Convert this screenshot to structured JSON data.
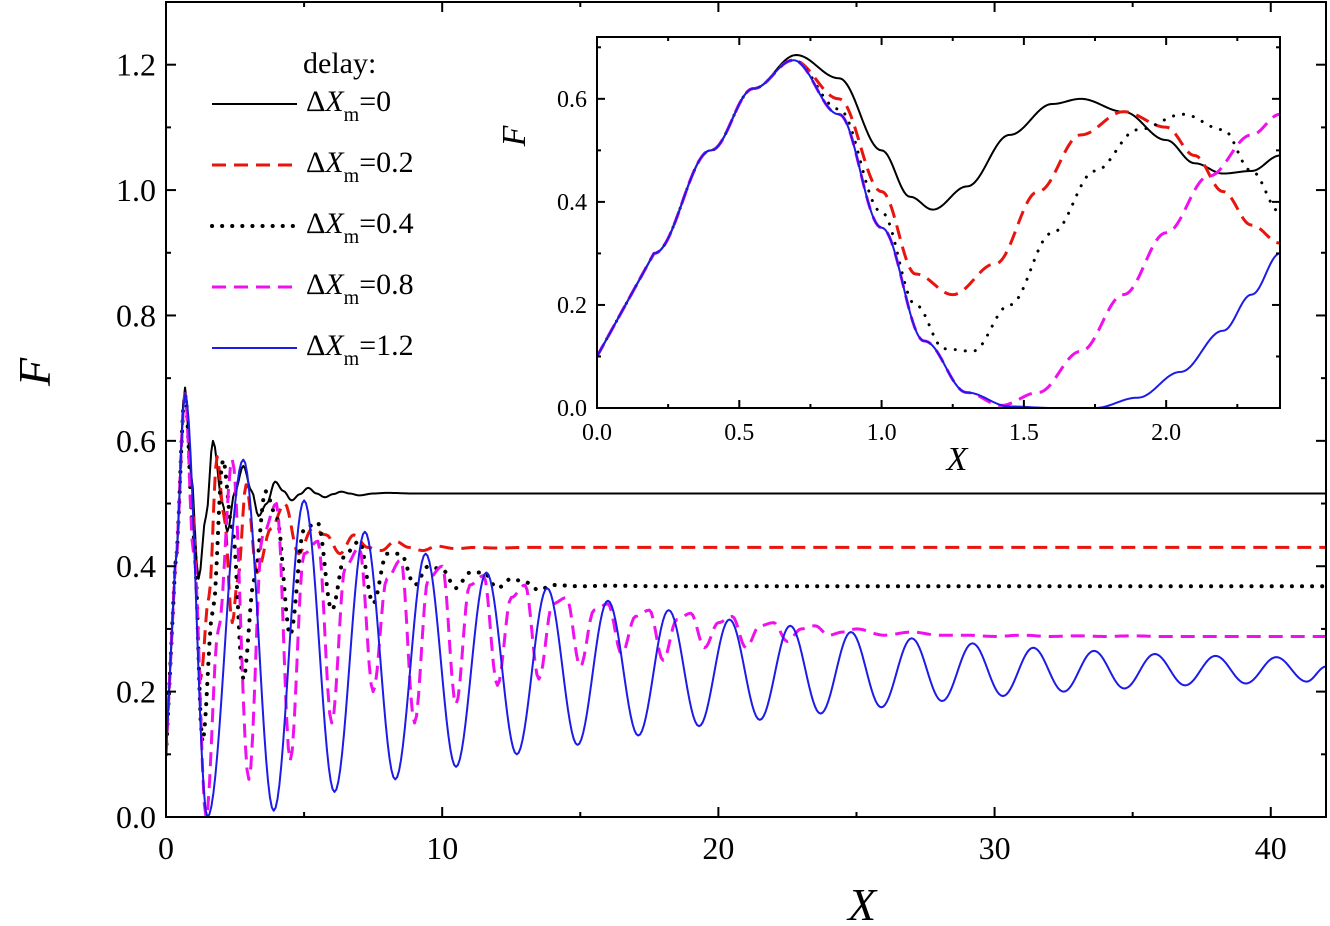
{
  "chart_data": [
    {
      "id": "main",
      "type": "line",
      "xlabel": "X",
      "ylabel": "F",
      "xlim": [
        0,
        42
      ],
      "ylim": [
        0,
        1.3
      ],
      "xticks": [
        "0",
        "10",
        "20",
        "30",
        "40"
      ],
      "yticks": [
        "0.0",
        "0.2",
        "0.4",
        "0.6",
        "0.8",
        "1.0",
        "1.2"
      ],
      "legend": {
        "title": "delay:",
        "placement": "top-left",
        "entries": [
          {
            "prefix": "Δ",
            "var": "X",
            "sub": "m",
            "value": "=0",
            "color": "#000000",
            "dash": "solid"
          },
          {
            "prefix": "Δ",
            "var": "X",
            "sub": "m",
            "value": "=0.2",
            "color": "#e8140e",
            "dash": "dashed"
          },
          {
            "prefix": "Δ",
            "var": "X",
            "sub": "m",
            "value": "=0.4",
            "color": "#000000",
            "dash": "dotted"
          },
          {
            "prefix": "Δ",
            "var": "X",
            "sub": "m",
            "value": "=0.8",
            "color": "#ee11ee",
            "dash": "dashed"
          },
          {
            "prefix": "Δ",
            "var": "X",
            "sub": "m",
            "value": "=1.2",
            "color": "#1c1ce6",
            "dash": "solid"
          }
        ]
      },
      "series": [
        {
          "delay": 0,
          "color": "#000000",
          "dash": "solid",
          "line_width": 2,
          "x": [
            0,
            0.33,
            0.69,
            0.9,
            1.18,
            1.45,
            1.7,
            2.05,
            2.22,
            2.5,
            2.8,
            3.1,
            3.35,
            3.65,
            3.95,
            4.25,
            4.55,
            4.85,
            5.15,
            5.45,
            5.75,
            6.05,
            6.35,
            6.65,
            7.0,
            7.5,
            8.0,
            9.0,
            42
          ],
          "y": [
            0.1,
            0.4,
            0.685,
            0.55,
            0.38,
            0.48,
            0.6,
            0.5,
            0.455,
            0.52,
            0.56,
            0.52,
            0.48,
            0.5,
            0.535,
            0.52,
            0.505,
            0.515,
            0.525,
            0.516,
            0.51,
            0.515,
            0.519,
            0.516,
            0.513,
            0.516,
            0.517,
            0.516,
            0.516
          ]
        },
        {
          "delay": 0.2,
          "color": "#e8140e",
          "dash": "dashed",
          "line_width": 3,
          "x": [
            0,
            0.33,
            0.69,
            0.95,
            1.25,
            1.55,
            1.85,
            2.1,
            2.4,
            2.6,
            2.9,
            3.3,
            3.8,
            4.3,
            4.8,
            5.3,
            5.8,
            6.3,
            6.8,
            7.3,
            7.8,
            8.3,
            8.8,
            9.3,
            9.8,
            10.5,
            11.2,
            12,
            13,
            42
          ],
          "y": [
            0.1,
            0.4,
            0.675,
            0.5,
            0.22,
            0.35,
            0.575,
            0.48,
            0.31,
            0.38,
            0.53,
            0.39,
            0.46,
            0.5,
            0.42,
            0.46,
            0.45,
            0.42,
            0.45,
            0.43,
            0.425,
            0.44,
            0.43,
            0.425,
            0.432,
            0.428,
            0.43,
            0.429,
            0.43,
            0.43
          ]
        },
        {
          "delay": 0.4,
          "color": "#000000",
          "dash": "dotted",
          "line_width": 4,
          "x": [
            0,
            0.33,
            0.69,
            1.0,
            1.32,
            1.7,
            2.06,
            2.4,
            2.8,
            3.2,
            3.6,
            4.0,
            4.5,
            5.0,
            5.5,
            6.0,
            6.5,
            7.0,
            7.5,
            8.0,
            8.5,
            9.0,
            9.5,
            10,
            10.5,
            11,
            11.5,
            12,
            12.5,
            13,
            13.5,
            14,
            15,
            16,
            18,
            42
          ],
          "y": [
            0.1,
            0.4,
            0.675,
            0.45,
            0.12,
            0.33,
            0.57,
            0.46,
            0.22,
            0.38,
            0.52,
            0.48,
            0.29,
            0.46,
            0.47,
            0.33,
            0.42,
            0.44,
            0.34,
            0.42,
            0.42,
            0.37,
            0.4,
            0.395,
            0.365,
            0.39,
            0.39,
            0.365,
            0.38,
            0.375,
            0.362,
            0.37,
            0.368,
            0.369,
            0.368,
            0.368
          ]
        },
        {
          "delay": 0.8,
          "color": "#ee11ee",
          "dash": "dashed",
          "line_width": 3,
          "x": [
            0,
            0.33,
            0.69,
            1.0,
            1.45,
            1.9,
            2.4,
            3.0,
            3.5,
            4.0,
            4.5,
            5.0,
            5.5,
            6.0,
            6.5,
            7.0,
            7.5,
            8.0,
            8.5,
            9.0,
            9.5,
            10.0,
            10.5,
            11.0,
            11.5,
            12.0,
            12.5,
            13.0,
            13.5,
            14.0,
            14.5,
            15.0,
            15.5,
            16.0,
            16.5,
            17.0,
            17.5,
            18.0,
            18.5,
            19.0,
            19.5,
            20.0,
            20.5,
            21.0,
            21.5,
            22.0,
            22.5,
            23.0,
            23.5,
            24.0,
            24.5,
            25.0,
            26,
            27,
            28,
            29,
            30,
            31,
            32,
            33,
            34,
            35,
            36,
            38,
            42
          ],
          "y": [
            0.1,
            0.4,
            0.675,
            0.42,
            0.0,
            0.3,
            0.57,
            0.06,
            0.45,
            0.5,
            0.09,
            0.42,
            0.44,
            0.15,
            0.4,
            0.43,
            0.2,
            0.38,
            0.41,
            0.15,
            0.38,
            0.4,
            0.18,
            0.37,
            0.385,
            0.21,
            0.35,
            0.37,
            0.22,
            0.34,
            0.35,
            0.24,
            0.33,
            0.34,
            0.26,
            0.32,
            0.33,
            0.25,
            0.315,
            0.325,
            0.27,
            0.31,
            0.32,
            0.27,
            0.305,
            0.31,
            0.28,
            0.3,
            0.305,
            0.29,
            0.295,
            0.3,
            0.29,
            0.295,
            0.29,
            0.29,
            0.288,
            0.29,
            0.288,
            0.289,
            0.288,
            0.289,
            0.288,
            0.288,
            0.288
          ]
        },
        {
          "delay": 1.2,
          "color": "#1c1ce6",
          "dash": "solid",
          "line_width": 2,
          "first_peak_x": 0.69,
          "first_peak_y": 0.675,
          "oscillation_start_x": 1.45,
          "period": 2.2,
          "peaks_x": [
            2.8,
            5.0,
            7.2,
            9.4,
            11.6,
            13.8,
            16.0,
            18.2,
            20.4,
            22.6,
            24.8,
            27.0,
            29.2,
            31.4,
            33.6,
            35.8,
            38.0,
            40.2
          ],
          "peaks_y": [
            0.57,
            0.505,
            0.455,
            0.42,
            0.39,
            0.365,
            0.345,
            0.33,
            0.315,
            0.305,
            0.295,
            0.285,
            0.277,
            0.27,
            0.265,
            0.26,
            0.257,
            0.255
          ],
          "troughs_x": [
            1.5,
            3.9,
            6.1,
            8.3,
            10.5,
            12.7,
            14.9,
            17.1,
            19.3,
            21.5,
            23.7,
            25.9,
            28.1,
            30.3,
            32.5,
            34.7,
            36.9,
            39.1,
            41.3
          ],
          "troughs_y": [
            0.0,
            0.01,
            0.04,
            0.06,
            0.08,
            0.1,
            0.115,
            0.13,
            0.145,
            0.155,
            0.165,
            0.175,
            0.185,
            0.193,
            0.2,
            0.205,
            0.21,
            0.213,
            0.216
          ],
          "end_x": 42,
          "end_y": 0.24
        }
      ]
    },
    {
      "id": "inset",
      "type": "line",
      "xlabel": "X",
      "ylabel": "F",
      "xlim": [
        0,
        2.4
      ],
      "ylim": [
        0,
        0.72
      ],
      "xticks": [
        "0.0",
        "0.5",
        "1.0",
        "1.5",
        "2.0"
      ],
      "yticks": [
        "0.0",
        "0.2",
        "0.4",
        "0.6"
      ],
      "series": [
        {
          "delay": 0,
          "color": "#000000",
          "dash": "solid",
          "line_width": 2,
          "x": [
            0,
            0.2,
            0.4,
            0.55,
            0.7,
            0.85,
            1.0,
            1.1,
            1.18,
            1.3,
            1.45,
            1.6,
            1.7,
            1.85,
            2.0,
            2.1,
            2.2,
            2.3,
            2.4
          ],
          "y": [
            0.1,
            0.3,
            0.5,
            0.62,
            0.685,
            0.64,
            0.5,
            0.41,
            0.385,
            0.43,
            0.53,
            0.59,
            0.6,
            0.575,
            0.52,
            0.475,
            0.455,
            0.46,
            0.49
          ]
        },
        {
          "delay": 0.2,
          "color": "#e8140e",
          "dash": "dashed",
          "line_width": 3,
          "x": [
            0,
            0.2,
            0.4,
            0.55,
            0.69,
            0.85,
            1.0,
            1.12,
            1.25,
            1.4,
            1.55,
            1.7,
            1.85,
            2.0,
            2.1,
            2.2,
            2.3,
            2.4
          ],
          "y": [
            0.1,
            0.3,
            0.5,
            0.62,
            0.675,
            0.6,
            0.42,
            0.26,
            0.22,
            0.28,
            0.42,
            0.53,
            0.575,
            0.545,
            0.49,
            0.42,
            0.355,
            0.32
          ]
        },
        {
          "delay": 0.4,
          "color": "#000000",
          "dash": "dotted",
          "line_width": 3,
          "x": [
            0,
            0.2,
            0.4,
            0.55,
            0.69,
            0.85,
            1.0,
            1.12,
            1.22,
            1.32,
            1.45,
            1.6,
            1.75,
            1.9,
            2.06,
            2.2,
            2.3,
            2.4
          ],
          "y": [
            0.1,
            0.3,
            0.5,
            0.62,
            0.675,
            0.58,
            0.38,
            0.2,
            0.115,
            0.11,
            0.2,
            0.34,
            0.46,
            0.54,
            0.57,
            0.54,
            0.46,
            0.38
          ]
        },
        {
          "delay": 0.8,
          "color": "#ee11ee",
          "dash": "dashed",
          "line_width": 3,
          "x": [
            0,
            0.2,
            0.4,
            0.55,
            0.69,
            0.85,
            1.0,
            1.15,
            1.3,
            1.42,
            1.55,
            1.7,
            1.85,
            2.0,
            2.15,
            2.3,
            2.4
          ],
          "y": [
            0.1,
            0.3,
            0.5,
            0.62,
            0.675,
            0.57,
            0.35,
            0.13,
            0.03,
            0.005,
            0.03,
            0.11,
            0.22,
            0.34,
            0.45,
            0.53,
            0.57
          ]
        },
        {
          "delay": 1.2,
          "color": "#1c1ce6",
          "dash": "solid",
          "line_width": 2,
          "x": [
            0,
            0.2,
            0.4,
            0.55,
            0.69,
            0.85,
            1.0,
            1.15,
            1.3,
            1.45,
            1.6,
            1.75,
            1.9,
            2.05,
            2.2,
            2.3,
            2.4
          ],
          "y": [
            0.1,
            0.3,
            0.5,
            0.62,
            0.675,
            0.57,
            0.35,
            0.13,
            0.03,
            0.003,
            0.0,
            0.0,
            0.02,
            0.07,
            0.15,
            0.22,
            0.3
          ]
        }
      ]
    }
  ]
}
